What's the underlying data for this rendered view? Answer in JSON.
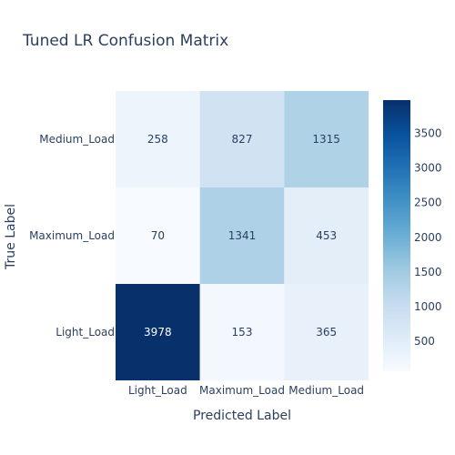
{
  "chart_data": {
    "type": "heatmap",
    "title": "Tuned LR Confusion Matrix",
    "xlabel": "Predicted Label",
    "ylabel": "True Label",
    "x_categories": [
      "Light_Load",
      "Maximum_Load",
      "Medium_Load"
    ],
    "y_categories": [
      "Light_Load",
      "Maximum_Load",
      "Medium_Load"
    ],
    "z": [
      [
        3978,
        153,
        365
      ],
      [
        70,
        1341,
        453
      ],
      [
        258,
        827,
        1315
      ]
    ],
    "colorscale": "Blues",
    "zmin": 70,
    "zmax": 3978,
    "colorbar_ticks": [
      500,
      1000,
      1500,
      2000,
      2500,
      3000,
      3500
    ]
  }
}
